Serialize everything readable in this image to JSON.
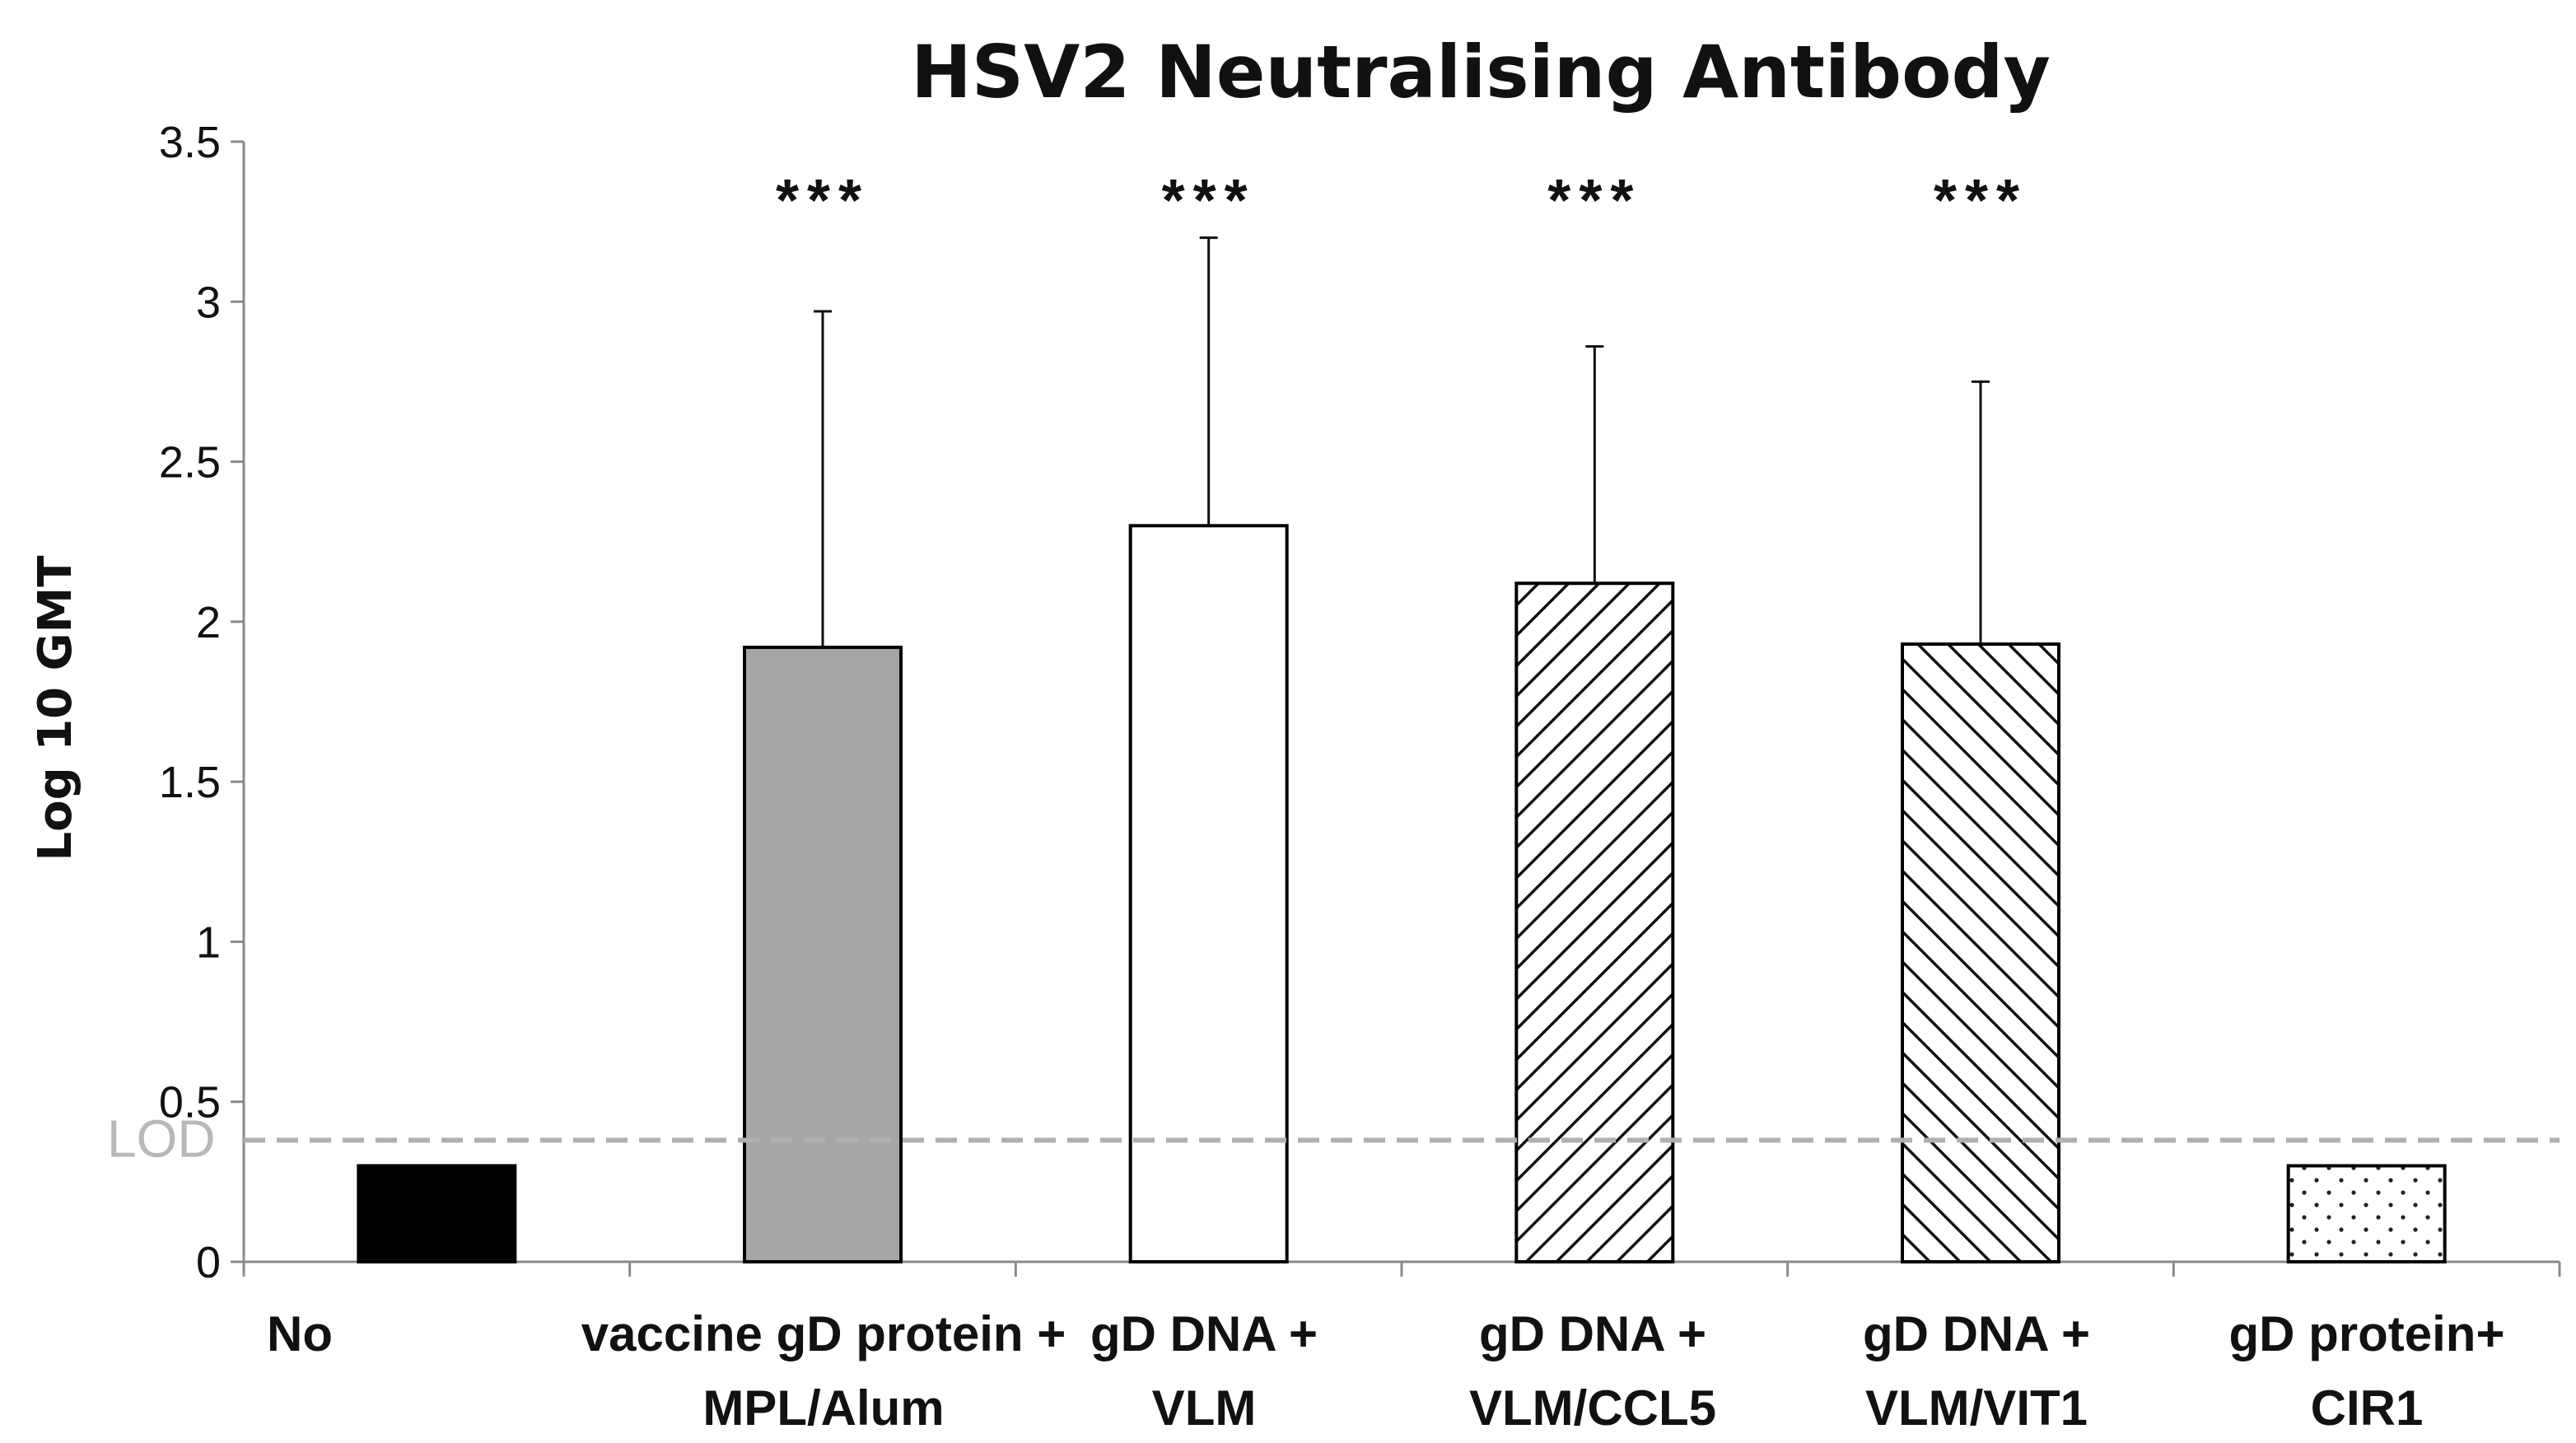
{
  "chart_data": {
    "type": "bar",
    "title": "HSV2 Neutralising Antibody",
    "xlabel": "",
    "ylabel": "Log 10 GMT",
    "ylim": [
      0,
      3.5
    ],
    "yticks": [
      0,
      0.5,
      1,
      1.5,
      2,
      2.5,
      3,
      3.5
    ],
    "ytick_labels": [
      "0",
      "0.5",
      "1",
      "1.5",
      "2",
      "2.5",
      "3",
      "3.5"
    ],
    "grid": false,
    "categories": [
      {
        "lines": [
          "No",
          ""
        ]
      },
      {
        "lines": [
          "vaccine gD protein +",
          "MPL/Alum"
        ]
      },
      {
        "lines": [
          "gD DNA +",
          "VLM"
        ]
      },
      {
        "lines": [
          "gD DNA +",
          "VLM/CCL5"
        ]
      },
      {
        "lines": [
          "gD DNA +",
          "VLM/VIT1"
        ]
      },
      {
        "lines": [
          "gD protein+",
          "CIR1"
        ]
      }
    ],
    "values": [
      0.3,
      1.92,
      2.3,
      2.12,
      1.93,
      0.3
    ],
    "error_upper": [
      null,
      2.97,
      3.2,
      2.86,
      2.75,
      null
    ],
    "significance": [
      "",
      "***",
      "***",
      "***",
      "***",
      ""
    ],
    "fills": [
      "solid-black",
      "solid-gray",
      "white",
      "hatch-forward",
      "hatch-back",
      "dots"
    ],
    "reference_line": {
      "label": "LOD",
      "value": 0.38,
      "color": "#b0b0b0"
    }
  }
}
